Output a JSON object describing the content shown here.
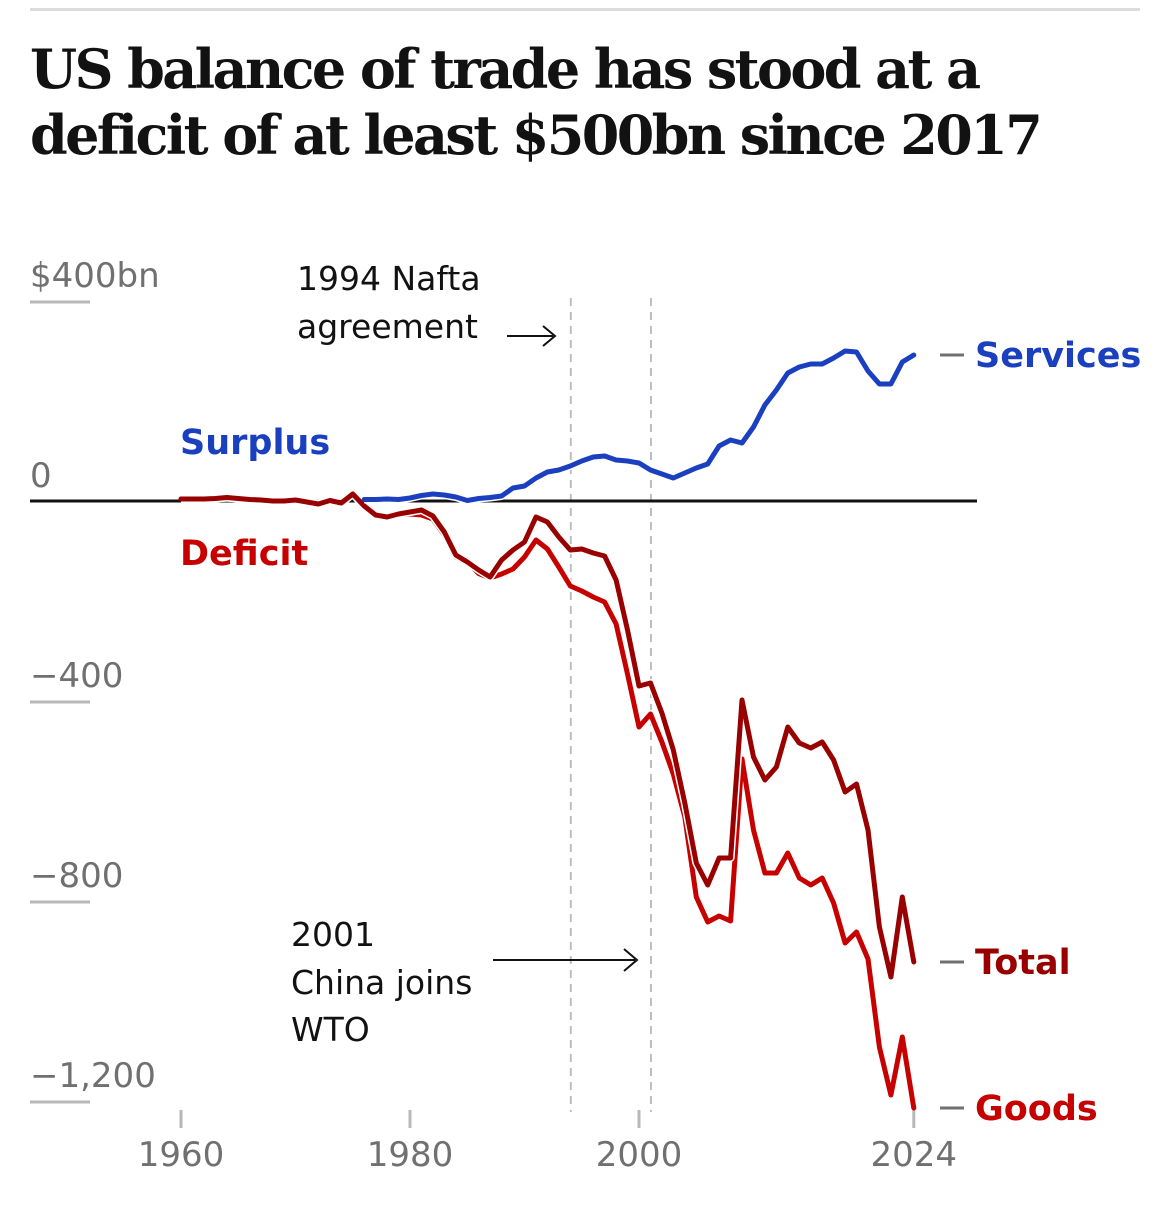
{
  "header": {
    "title": "US balance of trade has stood at a deficit of at least $500bn since 2017"
  },
  "chart_data": {
    "type": "line",
    "title": "US balance of trade has stood at a deficit of at least $500bn since 2017",
    "xlabel": "",
    "ylabel": "",
    "unit": "$bn",
    "xlim": [
      1960,
      2024
    ],
    "ylim": [
      -1200,
      400
    ],
    "x_ticks": [
      {
        "value": 1960,
        "label": "1960"
      },
      {
        "value": 1980,
        "label": "1980"
      },
      {
        "value": 2000,
        "label": "2000"
      },
      {
        "value": 2024,
        "label": "2024"
      }
    ],
    "y_ticks": [
      {
        "value": 400,
        "label": "$400bn"
      },
      {
        "value": 0,
        "label": "0"
      },
      {
        "value": -400,
        "label": "−400"
      },
      {
        "value": -800,
        "label": "−800"
      },
      {
        "value": -1200,
        "label": "−1,200"
      }
    ],
    "grid": false,
    "zero_line": true,
    "region_labels": [
      {
        "text": "Surplus",
        "color": "#1a3fbf"
      },
      {
        "text": "Deficit",
        "color": "#c70000"
      }
    ],
    "annotations": [
      {
        "year": 1994,
        "lines": [
          "1994 Nafta",
          "agreement"
        ]
      },
      {
        "year": 2001,
        "lines": [
          "2001",
          "China joins",
          "WTO"
        ]
      }
    ],
    "series": [
      {
        "name": "Services",
        "color": "#1a3fbf",
        "x": [
          1976,
          1977,
          1978,
          1979,
          1980,
          1981,
          1982,
          1983,
          1984,
          1985,
          1986,
          1987,
          1988,
          1989,
          1990,
          1991,
          1992,
          1993,
          1994,
          1995,
          1996,
          1997,
          1998,
          1999,
          2000,
          2001,
          2002,
          2003,
          2004,
          2005,
          2006,
          2007,
          2008,
          2009,
          2010,
          2011,
          2012,
          2013,
          2014,
          2015,
          2016,
          2017,
          2018,
          2019,
          2020,
          2021,
          2022,
          2023,
          2024
        ],
        "values": [
          3,
          3,
          4,
          3,
          6,
          11,
          14,
          12,
          8,
          1,
          5,
          7,
          10,
          26,
          30,
          46,
          58,
          62,
          70,
          80,
          88,
          90,
          82,
          80,
          76,
          62,
          54,
          46,
          56,
          66,
          74,
          110,
          122,
          116,
          148,
          192,
          222,
          256,
          268,
          274,
          274,
          286,
          300,
          298,
          260,
          234,
          234,
          278,
          292
        ]
      },
      {
        "name": "Total",
        "color": "#990000",
        "x": [
          1960,
          1961,
          1962,
          1963,
          1964,
          1965,
          1966,
          1967,
          1968,
          1969,
          1970,
          1971,
          1972,
          1973,
          1974,
          1975,
          1976,
          1977,
          1978,
          1979,
          1980,
          1981,
          1982,
          1983,
          1984,
          1985,
          1986,
          1987,
          1988,
          1989,
          1990,
          1991,
          1992,
          1993,
          1994,
          1995,
          1996,
          1997,
          1998,
          1999,
          2000,
          2001,
          2002,
          2003,
          2004,
          2005,
          2006,
          2007,
          2008,
          2009,
          2010,
          2011,
          2012,
          2013,
          2014,
          2015,
          2016,
          2017,
          2018,
          2019,
          2020,
          2021,
          2022,
          2023,
          2024
        ],
        "values": [
          4,
          4,
          4,
          5,
          7,
          5,
          3,
          2,
          0,
          0,
          2,
          -2,
          -6,
          1,
          -4,
          14,
          -10,
          -28,
          -32,
          -26,
          -22,
          -18,
          -30,
          -62,
          -108,
          -122,
          -138,
          -152,
          -118,
          -98,
          -82,
          -32,
          -42,
          -72,
          -98,
          -96,
          -104,
          -110,
          -158,
          -258,
          -370,
          -364,
          -424,
          -498,
          -604,
          -724,
          -768,
          -714,
          -714,
          -398,
          -512,
          -558,
          -532,
          -452,
          -484,
          -494,
          -482,
          -518,
          -582,
          -566,
          -658,
          -852,
          -952,
          -792,
          -922
        ]
      },
      {
        "name": "Goods",
        "color": "#c70000",
        "x": [
          1960,
          1961,
          1962,
          1963,
          1964,
          1965,
          1966,
          1967,
          1968,
          1969,
          1970,
          1971,
          1972,
          1973,
          1974,
          1975,
          1976,
          1977,
          1978,
          1979,
          1980,
          1981,
          1982,
          1983,
          1984,
          1985,
          1986,
          1987,
          1988,
          1989,
          1990,
          1991,
          1992,
          1993,
          1994,
          1995,
          1996,
          1997,
          1998,
          1999,
          2000,
          2001,
          2002,
          2003,
          2004,
          2005,
          2006,
          2007,
          2008,
          2009,
          2010,
          2011,
          2012,
          2013,
          2014,
          2015,
          2016,
          2017,
          2018,
          2019,
          2020,
          2021,
          2022,
          2023,
          2024
        ],
        "values": [
          4,
          4,
          4,
          5,
          7,
          5,
          3,
          2,
          0,
          0,
          2,
          -2,
          -6,
          1,
          -4,
          14,
          -10,
          -30,
          -34,
          -28,
          -26,
          -28,
          -36,
          -68,
          -112,
          -122,
          -145,
          -154,
          -146,
          -136,
          -112,
          -78,
          -96,
          -132,
          -170,
          -180,
          -192,
          -202,
          -246,
          -346,
          -452,
          -426,
          -482,
          -546,
          -632,
          -792,
          -842,
          -830,
          -840,
          -516,
          -658,
          -744,
          -744,
          -704,
          -754,
          -768,
          -754,
          -804,
          -884,
          -862,
          -916,
          -1092,
          -1188,
          -1072,
          -1214
        ]
      }
    ]
  }
}
